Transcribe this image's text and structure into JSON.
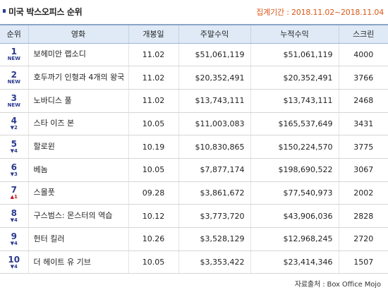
{
  "header": {
    "title": "미국 박스오피스 순위",
    "period": "집계기간 : 2018.11.02~2018.11.04"
  },
  "columns": [
    "순위",
    "영화",
    "개봉일",
    "주말수익",
    "누적수익",
    "스크린"
  ],
  "rows": [
    {
      "rank": "1",
      "change": "NEW",
      "change_type": "new",
      "movie": "보헤미안 랩소디",
      "release": "11.02",
      "weekend": "$51,061,119",
      "total": "$51,061,119",
      "screens": "4000"
    },
    {
      "rank": "2",
      "change": "NEW",
      "change_type": "new",
      "movie": "호두까기 인형과 4개의 왕국",
      "release": "11.02",
      "weekend": "$20,352,491",
      "total": "$20,352,491",
      "screens": "3766"
    },
    {
      "rank": "3",
      "change": "NEW",
      "change_type": "new",
      "movie": "노바디스 풀",
      "release": "11.02",
      "weekend": "$13,743,111",
      "total": "$13,743,111",
      "screens": "2468"
    },
    {
      "rank": "4",
      "change": "▼2",
      "change_type": "down",
      "movie": "스타 이즈 본",
      "release": "10.05",
      "weekend": "$11,003,083",
      "total": "$165,537,649",
      "screens": "3431"
    },
    {
      "rank": "5",
      "change": "▼4",
      "change_type": "down",
      "movie": "할로윈",
      "release": "10.19",
      "weekend": "$10,830,865",
      "total": "$150,224,570",
      "screens": "3775"
    },
    {
      "rank": "6",
      "change": "▼3",
      "change_type": "down",
      "movie": "베놈",
      "release": "10.05",
      "weekend": "$7,877,174",
      "total": "$198,690,522",
      "screens": "3067"
    },
    {
      "rank": "7",
      "change": "▲1",
      "change_type": "up",
      "movie": "스몰풋",
      "release": "09.28",
      "weekend": "$3,861,672",
      "total": "$77,540,973",
      "screens": "2002"
    },
    {
      "rank": "8",
      "change": "▼4",
      "change_type": "down",
      "movie": "구스범스: 몬스터의 역습",
      "release": "10.12",
      "weekend": "$3,773,720",
      "total": "$43,906,036",
      "screens": "2828"
    },
    {
      "rank": "9",
      "change": "▼4",
      "change_type": "down",
      "movie": "헌터 킬러",
      "release": "10.26",
      "weekend": "$3,528,129",
      "total": "$12,968,245",
      "screens": "2720"
    },
    {
      "rank": "10",
      "change": "▼4",
      "change_type": "down",
      "movie": "더 헤이트 유 기브",
      "release": "10.05",
      "weekend": "$3,353,422",
      "total": "$23,414,346",
      "screens": "1507"
    }
  ],
  "source": "자료출처 : Box Office Mojo"
}
